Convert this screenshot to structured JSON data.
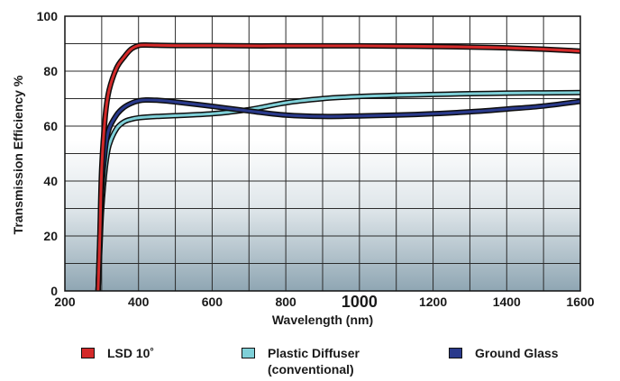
{
  "chart_data": {
    "type": "line",
    "xlabel": "Wavelength (nm)",
    "ylabel": "Transmission Efficiency %",
    "xlim": [
      200,
      1600
    ],
    "ylim": [
      0,
      100
    ],
    "x_ticks": [
      "200",
      "400",
      "600",
      "800",
      "1000",
      "1200",
      "1400",
      "1600"
    ],
    "y_ticks": [
      "0",
      "20",
      "40",
      "60",
      "80",
      "100"
    ],
    "grid": true,
    "legend_position": "bottom",
    "series": [
      {
        "name": "LSD 10˚",
        "color": "#d42a2a",
        "x": [
          290,
          295,
          300,
          310,
          320,
          340,
          360,
          380,
          400,
          420,
          450,
          500,
          600,
          700,
          800,
          900,
          1000,
          1100,
          1200,
          1300,
          1400,
          1500,
          1600
        ],
        "y": [
          0,
          20,
          45,
          64,
          73,
          81,
          85,
          88,
          89.3,
          89.5,
          89.4,
          89.3,
          89.3,
          89.2,
          89.2,
          89.2,
          89.2,
          89.1,
          89,
          88.8,
          88.5,
          88.0,
          87.3
        ]
      },
      {
        "name": "Plastic Diffuser",
        "subtitle": "(conventional)",
        "color": "#7fd0d8",
        "x": [
          290,
          295,
          300,
          310,
          320,
          340,
          360,
          380,
          400,
          450,
          500,
          600,
          700,
          800,
          900,
          1000,
          1100,
          1200,
          1300,
          1400,
          1500,
          1600
        ],
        "y": [
          0,
          15,
          30,
          45,
          53,
          59,
          61.5,
          62.5,
          63,
          63.5,
          63.8,
          64.5,
          66,
          68.5,
          70,
          70.8,
          71.2,
          71.5,
          71.8,
          72,
          72.1,
          72.2
        ]
      },
      {
        "name": "Ground Glass",
        "color": "#2a3a8c",
        "x": [
          290,
          295,
          300,
          310,
          320,
          340,
          360,
          380,
          400,
          420,
          450,
          500,
          600,
          700,
          800,
          900,
          1000,
          1100,
          1200,
          1300,
          1400,
          1500,
          1600
        ],
        "y": [
          0,
          18,
          37,
          52,
          59,
          64,
          66.8,
          68.3,
          69.2,
          69.5,
          69.4,
          68.8,
          67.2,
          65.5,
          64,
          63.5,
          63.7,
          64,
          64.5,
          65.2,
          66.2,
          67.3,
          69
        ]
      }
    ]
  },
  "legend": [
    {
      "label": "LSD 10˚",
      "sub": "",
      "color": "#d42a2a"
    },
    {
      "label": "Plastic Diffuser",
      "sub": "(conventional)",
      "color": "#7fd0d8"
    },
    {
      "label": "Ground Glass",
      "sub": "",
      "color": "#2a3a8c"
    }
  ]
}
